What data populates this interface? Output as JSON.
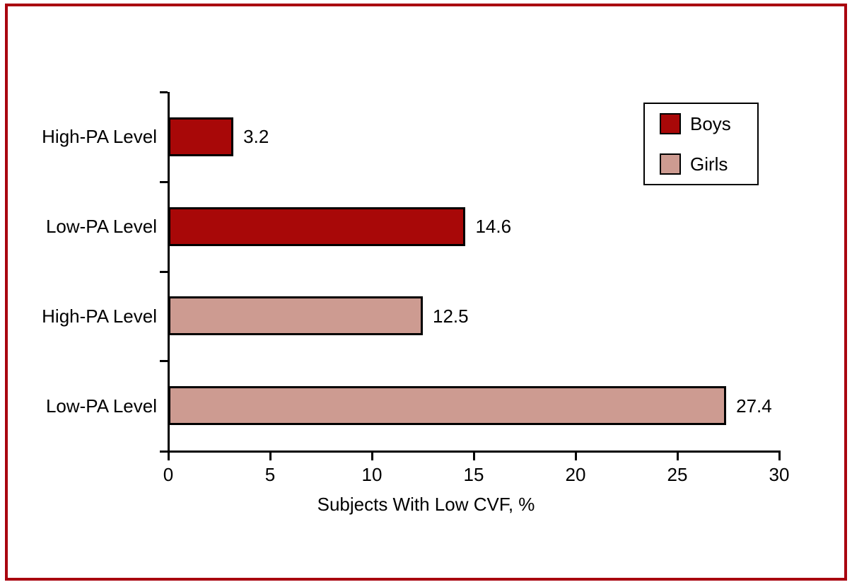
{
  "figure": {
    "frame_color": "#A9030F",
    "background_color": "#FFFFFF",
    "axis_color": "#000000"
  },
  "chart_data": {
    "type": "bar",
    "orientation": "horizontal",
    "title": "",
    "xlabel": "Subjects With Low CVF, %",
    "ylabel": "",
    "xlim": [
      0,
      30
    ],
    "x_ticks": [
      0,
      5,
      10,
      15,
      20,
      25,
      30
    ],
    "grid": "off",
    "legend_position": "top-right",
    "bars": [
      {
        "label": "High-PA Level",
        "series": "Boys",
        "value": 3.2,
        "value_label": "3.2"
      },
      {
        "label": "Low-PA Level",
        "series": "Boys",
        "value": 14.6,
        "value_label": "14.6"
      },
      {
        "label": "High-PA Level",
        "series": "Girls",
        "value": 12.5,
        "value_label": "12.5"
      },
      {
        "label": "Low-PA Level",
        "series": "Girls",
        "value": 27.4,
        "value_label": "27.4"
      }
    ],
    "series_colors": {
      "Boys": "#A80808",
      "Girls": "#CD9B91"
    },
    "legend": [
      {
        "label": "Boys",
        "color": "#A80808"
      },
      {
        "label": "Girls",
        "color": "#CD9B91"
      }
    ]
  }
}
